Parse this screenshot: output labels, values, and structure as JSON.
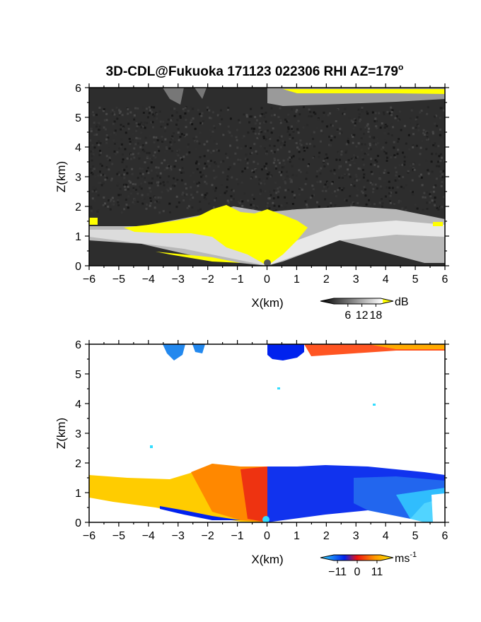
{
  "chart_data": [
    {
      "type": "heatmap",
      "title": "3D-CDL@Fukuoka 171123 022306 RHI AZ=179",
      "title_superscript": "o",
      "xlabel": "X(km)",
      "ylabel": "Z(km)",
      "xlim": [
        -6,
        6
      ],
      "ylim": [
        0,
        6
      ],
      "x_ticks": [
        "-6",
        "-5",
        "-4",
        "-3",
        "-2",
        "-1",
        "0",
        "1",
        "2",
        "3",
        "4",
        "5",
        "6"
      ],
      "y_ticks": [
        "0",
        "1",
        "2",
        "3",
        "4",
        "5",
        "6"
      ],
      "colorbar": {
        "label": "dB",
        "ticks": [
          "6",
          "12",
          "18"
        ],
        "range": [
          0,
          20
        ],
        "colors": [
          "#000000",
          "#ffffff",
          "#ffff00"
        ]
      },
      "field": "signal-to-noise ratio",
      "colors": {
        "background": "#2e2e2e",
        "saturated": "#ffff00"
      }
    },
    {
      "type": "heatmap",
      "title": "",
      "xlabel": "X(km)",
      "ylabel": "Z(km)",
      "xlim": [
        -6,
        6
      ],
      "ylim": [
        0,
        6
      ],
      "x_ticks": [
        "-6",
        "-5",
        "-4",
        "-3",
        "-2",
        "-1",
        "0",
        "1",
        "2",
        "3",
        "4",
        "5",
        "6"
      ],
      "y_ticks": [
        "0",
        "1",
        "2",
        "3",
        "4",
        "5",
        "6"
      ],
      "colorbar": {
        "label": "ms",
        "label_superscript": "-1",
        "ticks": [
          "-11",
          "0",
          "11"
        ],
        "range": [
          -13,
          13
        ],
        "colors": [
          "#33ddff",
          "#0022ee",
          "#ee1111",
          "#ffee00"
        ]
      },
      "field": "radial velocity",
      "colors": {
        "background": "#ffffff"
      }
    }
  ]
}
